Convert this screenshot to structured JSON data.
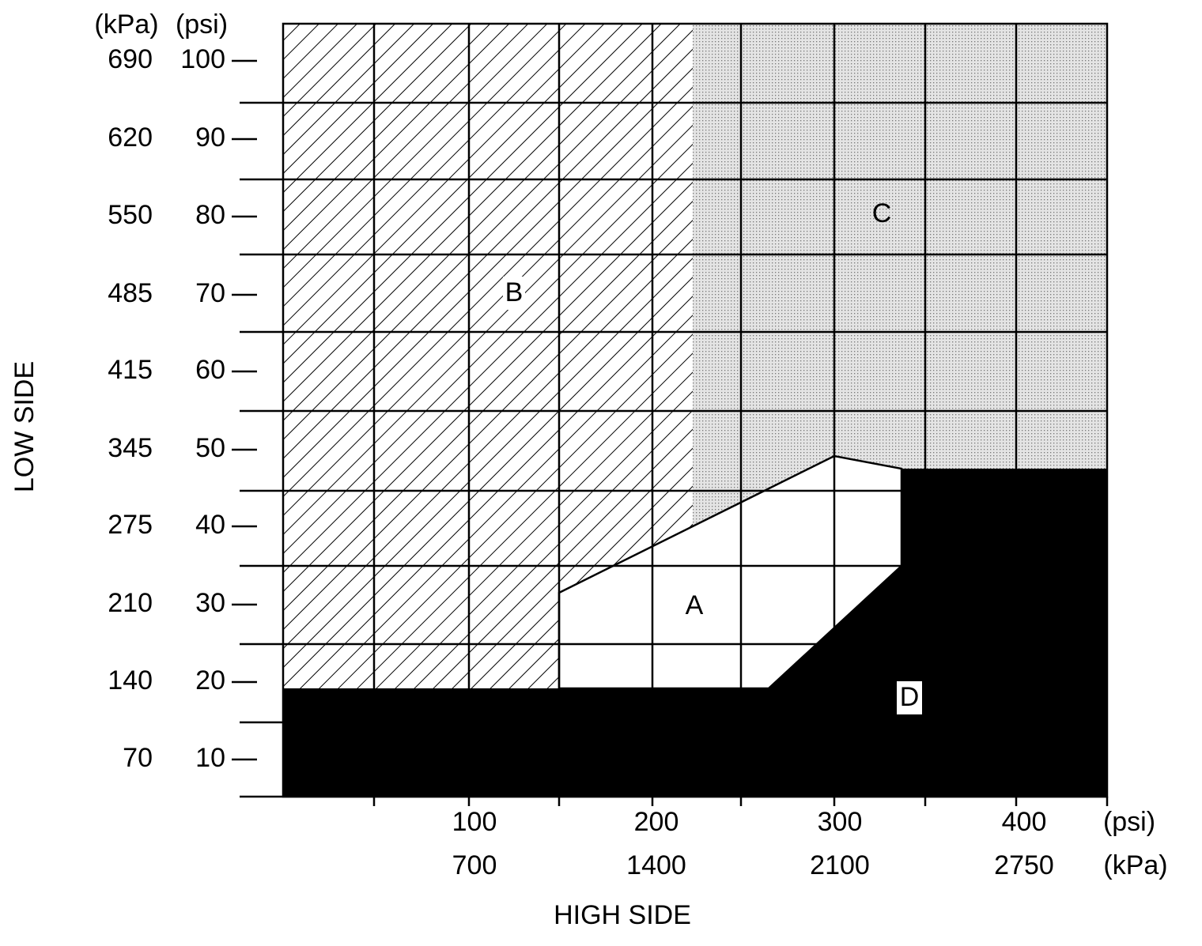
{
  "y_axis": {
    "label": "LOW SIDE",
    "kpa_unit": "(kPa)",
    "psi_unit": "(psi)",
    "kpa": [
      690,
      620,
      550,
      485,
      415,
      345,
      275,
      210,
      140,
      70
    ],
    "psi": [
      100,
      90,
      80,
      70,
      60,
      50,
      40,
      30,
      20,
      10
    ]
  },
  "x_axis": {
    "label": "HIGH SIDE",
    "psi_unit": "(psi)",
    "kpa_unit": "(kPa)",
    "psi": [
      100,
      200,
      300,
      400
    ],
    "kpa": [
      700,
      1400,
      2100,
      2750
    ]
  },
  "regions": {
    "a": "A",
    "b": "B",
    "c": "C",
    "d": "D"
  }
}
